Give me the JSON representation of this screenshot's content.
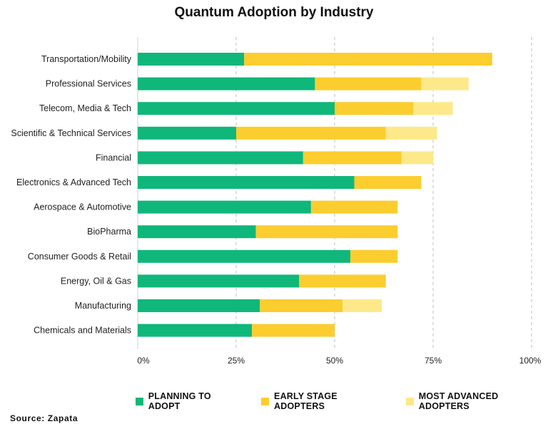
{
  "title": "Quantum Adoption by Industry",
  "source": "Source: Zapata",
  "colors": {
    "planning": "#10b77a",
    "early": "#fbcd2f",
    "advanced": "#fde98a",
    "grid": "#bdbdbd",
    "axis": "#cfcfcf"
  },
  "chart_data": {
    "type": "bar",
    "orientation": "horizontal",
    "stacked": true,
    "categories": [
      "Transportation/Mobility",
      "Professional Services",
      "Telecom, Media & Tech",
      "Scientific & Technical Services",
      "Financial",
      "Electronics & Advanced Tech",
      "Aerospace & Automotive",
      "BioPharma",
      "Consumer Goods & Retail",
      "Energy, Oil & Gas",
      "Manufacturing",
      "Chemicals and Materials"
    ],
    "series": [
      {
        "name": "PLANNING TO ADOPT",
        "color": "#10b77a",
        "values": [
          27,
          45,
          50,
          25,
          42,
          55,
          44,
          30,
          54,
          41,
          31,
          29
        ]
      },
      {
        "name": "EARLY STAGE ADOPTERS",
        "color": "#fbcd2f",
        "values": [
          63,
          27,
          20,
          38,
          25,
          17,
          22,
          36,
          12,
          22,
          21,
          21
        ]
      },
      {
        "name": "MOST ADVANCED ADOPTERS",
        "color": "#fde98a",
        "values": [
          0,
          12,
          10,
          13,
          8,
          0,
          0,
          0,
          0,
          0,
          10,
          0
        ]
      }
    ],
    "xlim": [
      0,
      100
    ],
    "xticks": [
      "0%",
      "25%",
      "50%",
      "75%",
      "100%"
    ],
    "xtick_values": [
      0,
      25,
      50,
      75,
      100
    ],
    "grid": true,
    "legend_position": "bottom"
  }
}
